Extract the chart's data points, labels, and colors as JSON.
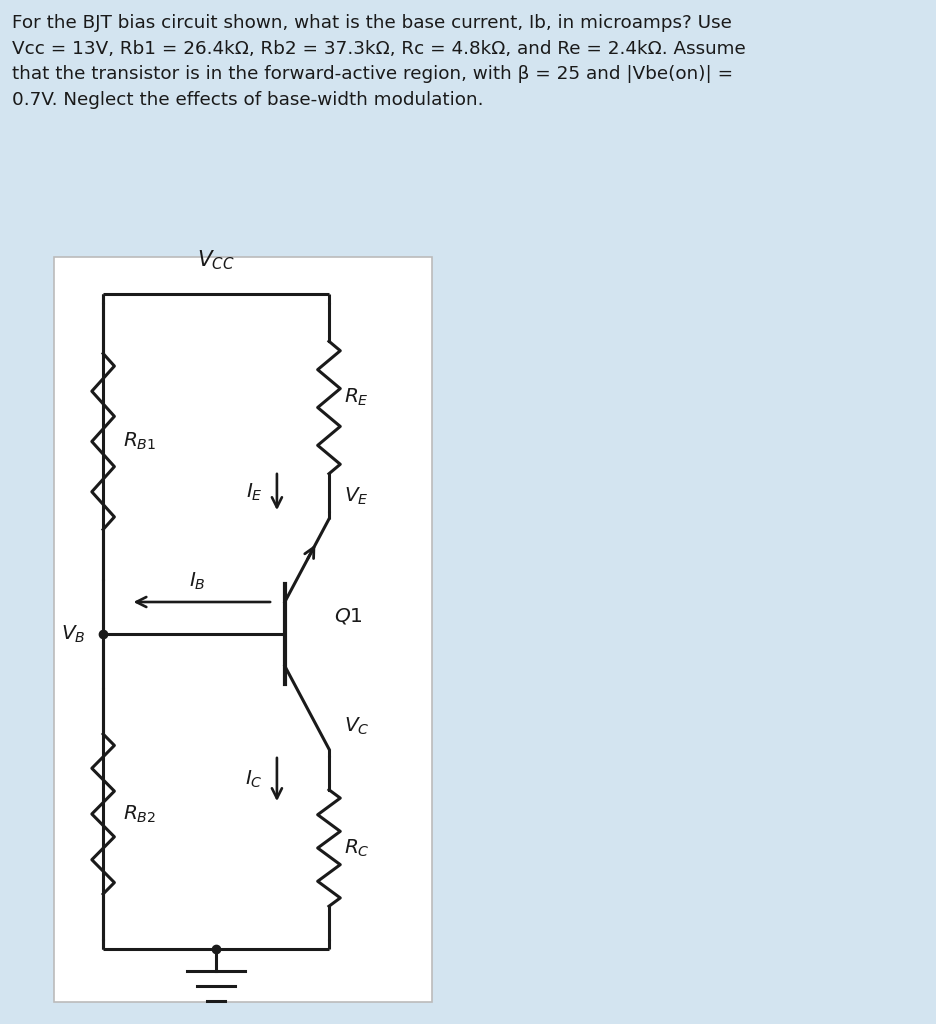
{
  "bg_color": "#d3e4f0",
  "circuit_bg": "#ffffff",
  "title_text": "For the BJT bias circuit shown, what is the base current, Ib, in microamps? Use\nVcc = 13V, Rb1 = 26.4kΩ, Rb2 = 37.3kΩ, Rc = 4.8kΩ, and Re = 2.4kΩ. Assume\nthat the transistor is in the forward-active region, with β = 25 and |Vbe(on)| =\n0.7V. Neglect the effects of base-width modulation.",
  "line_color": "#1a1a1a",
  "text_color": "#1a1a1a",
  "lw": 2.2
}
